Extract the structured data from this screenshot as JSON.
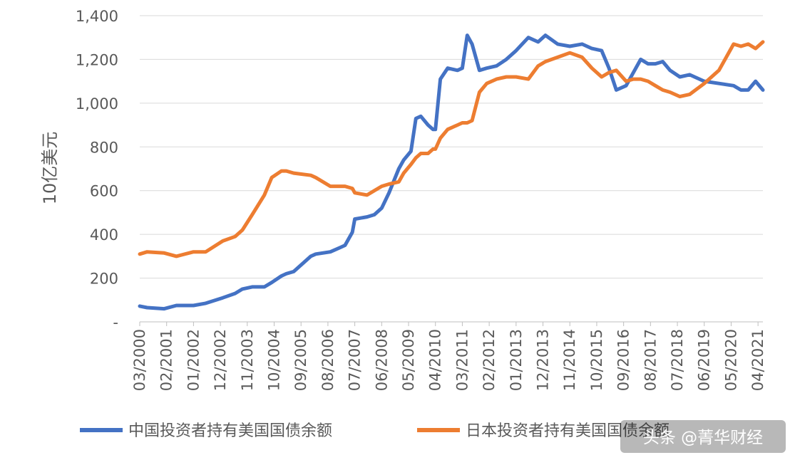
{
  "chart_data": {
    "type": "line",
    "title": "",
    "xlabel": "",
    "ylabel": "10亿美元",
    "ylim": [
      0,
      1400
    ],
    "yticks": [
      {
        "value": 0,
        "label": "-"
      },
      {
        "value": 200,
        "label": "200"
      },
      {
        "value": 400,
        "label": "400"
      },
      {
        "value": 600,
        "label": "600"
      },
      {
        "value": 800,
        "label": "800"
      },
      {
        "value": 1000,
        "label": "1,000"
      },
      {
        "value": 1200,
        "label": "1,200"
      },
      {
        "value": 1400,
        "label": "1,400"
      }
    ],
    "xlim": [
      "2000-03",
      "2021-06"
    ],
    "xticks": [
      "03/2000",
      "02/2001",
      "01/2002",
      "12/2002",
      "11/2003",
      "10/2004",
      "09/2005",
      "08/2006",
      "07/2007",
      "06/2008",
      "05/2009",
      "04/2010",
      "03/2011",
      "02/2012",
      "01/2013",
      "12/2013",
      "11/2014",
      "10/2015",
      "09/2016",
      "08/2017",
      "07/2018",
      "06/2019",
      "05/2020",
      "04/2021"
    ],
    "grid": "horizontal",
    "legend": "bottom",
    "series": [
      {
        "name": "中国投资者持有美国国债余额",
        "color": "#4472C4",
        "x": [
          "2000-03",
          "2000-06",
          "2001-01",
          "2001-06",
          "2002-01",
          "2002-06",
          "2003-01",
          "2003-06",
          "2003-09",
          "2004-01",
          "2004-06",
          "2004-09",
          "2005-01",
          "2005-03",
          "2005-06",
          "2006-01",
          "2006-03",
          "2006-09",
          "2007-01",
          "2007-03",
          "2007-06",
          "2007-07",
          "2007-12",
          "2008-03",
          "2008-06",
          "2008-09",
          "2009-01",
          "2009-03",
          "2009-06",
          "2009-08",
          "2009-10",
          "2010-01",
          "2010-03",
          "2010-04",
          "2010-06",
          "2010-09",
          "2011-01",
          "2011-03",
          "2011-05",
          "2011-07",
          "2011-10",
          "2012-01",
          "2012-05",
          "2012-09",
          "2013-01",
          "2013-06",
          "2013-10",
          "2014-01",
          "2014-06",
          "2014-11",
          "2015-04",
          "2015-08",
          "2015-12",
          "2016-03",
          "2016-06",
          "2016-10",
          "2017-01",
          "2017-04",
          "2017-07",
          "2017-10",
          "2018-01",
          "2018-04",
          "2018-08",
          "2018-12",
          "2019-06",
          "2019-12",
          "2020-06",
          "2020-09",
          "2020-12",
          "2021-03",
          "2021-06"
        ],
        "values": [
          72,
          65,
          60,
          75,
          75,
          85,
          110,
          130,
          150,
          160,
          160,
          180,
          210,
          220,
          230,
          300,
          310,
          320,
          340,
          350,
          410,
          470,
          480,
          490,
          520,
          590,
          700,
          740,
          780,
          930,
          940,
          900,
          880,
          880,
          1110,
          1160,
          1150,
          1160,
          1310,
          1270,
          1150,
          1160,
          1170,
          1200,
          1240,
          1300,
          1280,
          1310,
          1270,
          1260,
          1270,
          1250,
          1240,
          1160,
          1060,
          1080,
          1140,
          1200,
          1180,
          1180,
          1190,
          1150,
          1120,
          1130,
          1100,
          1090,
          1080,
          1060,
          1060,
          1100,
          1060
        ]
      },
      {
        "name": "日本投资者持有美国国债余额",
        "color": "#ED7D31",
        "x": [
          "2000-03",
          "2000-06",
          "2001-01",
          "2001-06",
          "2002-01",
          "2002-06",
          "2003-01",
          "2003-06",
          "2003-09",
          "2004-01",
          "2004-06",
          "2004-09",
          "2005-01",
          "2005-03",
          "2005-06",
          "2006-01",
          "2006-03",
          "2006-09",
          "2007-01",
          "2007-03",
          "2007-06",
          "2007-07",
          "2007-12",
          "2008-03",
          "2008-06",
          "2008-09",
          "2009-01",
          "2009-03",
          "2009-06",
          "2009-08",
          "2009-10",
          "2010-01",
          "2010-03",
          "2010-04",
          "2010-06",
          "2010-09",
          "2011-01",
          "2011-03",
          "2011-05",
          "2011-07",
          "2011-10",
          "2012-01",
          "2012-05",
          "2012-09",
          "2013-01",
          "2013-06",
          "2013-10",
          "2014-01",
          "2014-06",
          "2014-11",
          "2015-04",
          "2015-08",
          "2015-12",
          "2016-03",
          "2016-06",
          "2016-10",
          "2017-01",
          "2017-04",
          "2017-07",
          "2017-10",
          "2018-01",
          "2018-04",
          "2018-08",
          "2018-12",
          "2019-06",
          "2019-12",
          "2020-06",
          "2020-09",
          "2020-12",
          "2021-03",
          "2021-06"
        ],
        "values": [
          310,
          320,
          315,
          300,
          320,
          320,
          370,
          390,
          420,
          490,
          580,
          660,
          690,
          690,
          680,
          670,
          660,
          620,
          620,
          620,
          610,
          590,
          580,
          600,
          620,
          630,
          640,
          680,
          720,
          750,
          770,
          770,
          790,
          790,
          840,
          880,
          900,
          910,
          910,
          920,
          1050,
          1090,
          1110,
          1120,
          1120,
          1110,
          1170,
          1190,
          1210,
          1230,
          1210,
          1160,
          1120,
          1140,
          1150,
          1100,
          1110,
          1110,
          1100,
          1080,
          1060,
          1050,
          1030,
          1040,
          1090,
          1150,
          1270,
          1260,
          1270,
          1250,
          1280
        ]
      }
    ]
  },
  "watermark": "头条 @菁华财经"
}
